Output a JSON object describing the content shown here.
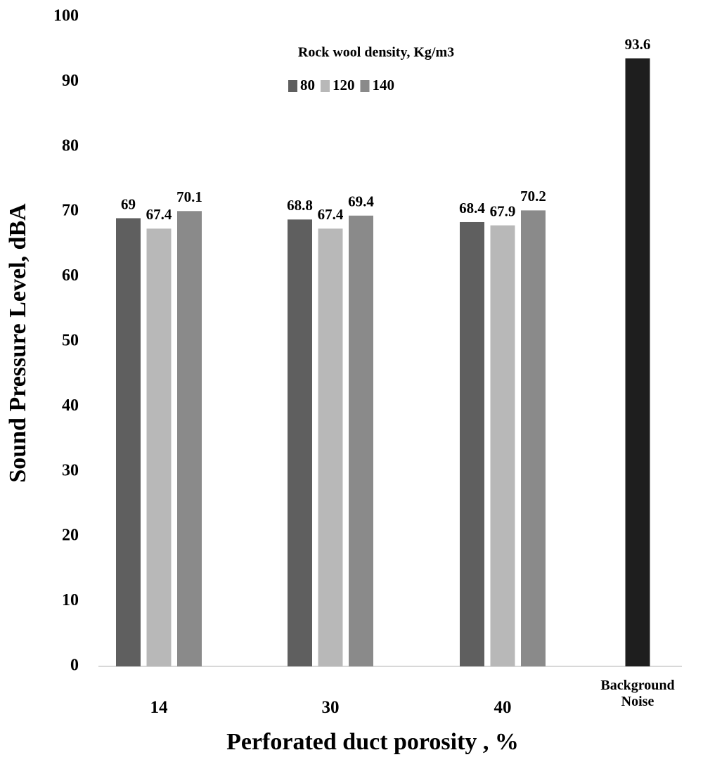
{
  "chart_data": {
    "type": "bar",
    "y_label": "Sound Pressure Level, dBA",
    "x_label": "Perforated duct porosity , %",
    "legend_title": "Rock wool density, Kg/m3",
    "categories": [
      "14",
      "30",
      "40",
      "Background Noise"
    ],
    "series": [
      {
        "name": "80",
        "color": "#5f5f5f",
        "values": [
          69,
          68.8,
          68.4,
          null
        ]
      },
      {
        "name": "120",
        "color": "#b8b8b8",
        "values": [
          67.4,
          67.4,
          67.9,
          null
        ]
      },
      {
        "name": "140",
        "color": "#8a8a8a",
        "values": [
          70.1,
          69.4,
          70.2,
          null
        ]
      },
      {
        "color": "#1e1e1e",
        "values": [
          null,
          null,
          null,
          93.6
        ]
      }
    ],
    "ylim": [
      0,
      100
    ],
    "yticks": [
      0,
      10,
      20,
      30,
      40,
      50,
      60,
      70,
      80,
      90,
      100
    ],
    "grid": false
  }
}
